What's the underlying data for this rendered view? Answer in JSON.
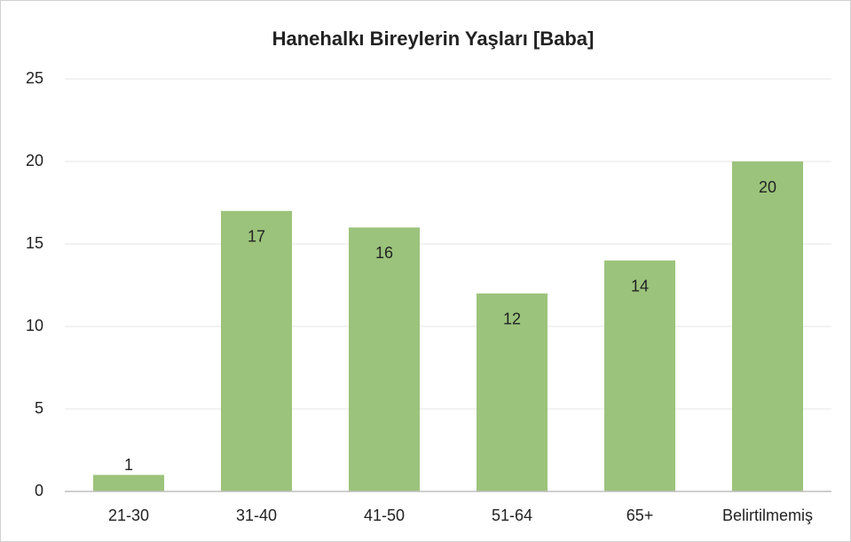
{
  "chart_data": {
    "type": "bar",
    "title": "Hanehalkı Bireylerin Yaşları [Baba]",
    "categories": [
      "21-30",
      "31-40",
      "41-50",
      "51-64",
      "65+",
      "Belirtilmemiş"
    ],
    "values": [
      1,
      17,
      16,
      12,
      14,
      20
    ],
    "color": "#9bc37b",
    "ylim": [
      0,
      25
    ],
    "yticks": [
      0,
      5,
      10,
      15,
      20,
      25
    ],
    "grid": true
  }
}
